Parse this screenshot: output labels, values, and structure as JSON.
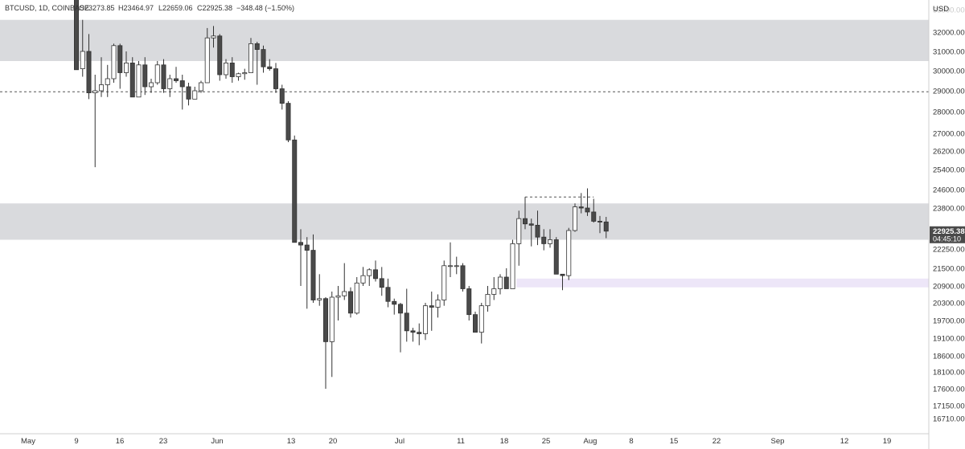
{
  "chart_data": {
    "type": "candlestick",
    "symbol_header": "BTCUSD, 1D, COINBASE",
    "ohlc_readout": {
      "open": "O23273.85",
      "high": "H23464.97",
      "low": "L22659.06",
      "close": "C22925.38",
      "change": "−348.48 (−1.50%)"
    },
    "currency_label": "USD",
    "y_ticks": [
      "32000.00",
      "31000.00",
      "30000.00",
      "29000.00",
      "28000.00",
      "27000.00",
      "26200.00",
      "25400.00",
      "24600.00",
      "23800.00",
      "22250.00",
      "21500.00",
      "20900.00",
      "20300.00",
      "19700.00",
      "19100.00",
      "18600.00",
      "18100.00",
      "17600.00",
      "17150.00",
      "16710.00"
    ],
    "x_ticks": [
      "May",
      "9",
      "16",
      "23",
      "Jun",
      "13",
      "20",
      "Jul",
      "11",
      "18",
      "25",
      "Aug",
      "8",
      "15",
      "22",
      "Sep",
      "12",
      "19"
    ],
    "last_price_label": "22925.38",
    "countdown_label": "04:45:10",
    "colors": {
      "up": "#ffffff",
      "down": "#4a4a4a",
      "outline": "#333333",
      "zone": "#d9dadd",
      "purple_zone": "#ede6f8",
      "price_tag": "#4a4a4a"
    },
    "zones": [
      {
        "type": "resistance",
        "from": 30500,
        "to": 32600
      },
      {
        "type": "supply",
        "from": 22600,
        "to": 24000
      },
      {
        "type": "demand",
        "from": 20850,
        "to": 21150
      }
    ],
    "horizontal_lines": [
      {
        "price": 28950,
        "style": "dashed"
      }
    ],
    "range_marker": {
      "price": 24280,
      "from_date": "2022-07-20",
      "to_date": "2022-07-31"
    },
    "candles": [
      {
        "date": "2022-05-09",
        "o": 34100,
        "h": 34400,
        "l": 30100,
        "c": 30050
      },
      {
        "date": "2022-05-10",
        "o": 30100,
        "h": 32600,
        "l": 29700,
        "c": 31000
      },
      {
        "date": "2022-05-11",
        "o": 31000,
        "h": 31900,
        "l": 28600,
        "c": 28900
      },
      {
        "date": "2022-05-12",
        "o": 28900,
        "h": 29800,
        "l": 25500,
        "c": 29000
      },
      {
        "date": "2022-05-13",
        "o": 29000,
        "h": 30700,
        "l": 28700,
        "c": 29300
      },
      {
        "date": "2022-05-14",
        "o": 29300,
        "h": 30300,
        "l": 28700,
        "c": 29600
      },
      {
        "date": "2022-05-15",
        "o": 29600,
        "h": 31400,
        "l": 29400,
        "c": 31300
      },
      {
        "date": "2022-05-16",
        "o": 31300,
        "h": 31400,
        "l": 29100,
        "c": 29900
      },
      {
        "date": "2022-05-17",
        "o": 29900,
        "h": 31000,
        "l": 29700,
        "c": 30400
      },
      {
        "date": "2022-05-18",
        "o": 30400,
        "h": 30700,
        "l": 28700,
        "c": 28700
      },
      {
        "date": "2022-05-19",
        "o": 28700,
        "h": 30500,
        "l": 28700,
        "c": 30300
      },
      {
        "date": "2022-05-20",
        "o": 30300,
        "h": 30700,
        "l": 28800,
        "c": 29200
      },
      {
        "date": "2022-05-21",
        "o": 29200,
        "h": 29600,
        "l": 28900,
        "c": 29400
      },
      {
        "date": "2022-05-22",
        "o": 29400,
        "h": 30500,
        "l": 29300,
        "c": 30300
      },
      {
        "date": "2022-05-23",
        "o": 30300,
        "h": 30600,
        "l": 28900,
        "c": 29100
      },
      {
        "date": "2022-05-24",
        "o": 29100,
        "h": 29800,
        "l": 28700,
        "c": 29600
      },
      {
        "date": "2022-05-25",
        "o": 29600,
        "h": 30200,
        "l": 29400,
        "c": 29500
      },
      {
        "date": "2022-05-26",
        "o": 29500,
        "h": 29800,
        "l": 28100,
        "c": 29200
      },
      {
        "date": "2022-05-27",
        "o": 29200,
        "h": 29400,
        "l": 28300,
        "c": 28600
      },
      {
        "date": "2022-05-28",
        "o": 28600,
        "h": 29200,
        "l": 28600,
        "c": 29000
      },
      {
        "date": "2022-05-29",
        "o": 29000,
        "h": 29500,
        "l": 28900,
        "c": 29400
      },
      {
        "date": "2022-05-30",
        "o": 29400,
        "h": 32200,
        "l": 29400,
        "c": 31700
      },
      {
        "date": "2022-05-31",
        "o": 31700,
        "h": 32300,
        "l": 31200,
        "c": 31800
      },
      {
        "date": "2022-06-01",
        "o": 31800,
        "h": 31900,
        "l": 29500,
        "c": 29800
      },
      {
        "date": "2022-06-02",
        "o": 29800,
        "h": 30600,
        "l": 29600,
        "c": 30400
      },
      {
        "date": "2022-06-03",
        "o": 30400,
        "h": 30700,
        "l": 29400,
        "c": 29700
      },
      {
        "date": "2022-06-04",
        "o": 29700,
        "h": 29900,
        "l": 29500,
        "c": 29850
      },
      {
        "date": "2022-06-05",
        "o": 29850,
        "h": 30100,
        "l": 29550,
        "c": 29900
      },
      {
        "date": "2022-06-06",
        "o": 29900,
        "h": 31700,
        "l": 29900,
        "c": 31400
      },
      {
        "date": "2022-06-07",
        "o": 31400,
        "h": 31500,
        "l": 29300,
        "c": 31100
      },
      {
        "date": "2022-06-08",
        "o": 31100,
        "h": 31300,
        "l": 29900,
        "c": 30200
      },
      {
        "date": "2022-06-09",
        "o": 30200,
        "h": 30600,
        "l": 30000,
        "c": 30100
      },
      {
        "date": "2022-06-10",
        "o": 30100,
        "h": 30400,
        "l": 28900,
        "c": 29100
      },
      {
        "date": "2022-06-11",
        "o": 29100,
        "h": 29300,
        "l": 28100,
        "c": 28400
      },
      {
        "date": "2022-06-12",
        "o": 28400,
        "h": 28500,
        "l": 26600,
        "c": 26700
      },
      {
        "date": "2022-06-13",
        "o": 26700,
        "h": 26900,
        "l": 22600,
        "c": 22500
      },
      {
        "date": "2022-06-14",
        "o": 22500,
        "h": 23000,
        "l": 20900,
        "c": 22400
      },
      {
        "date": "2022-06-15",
        "o": 22400,
        "h": 22700,
        "l": 20100,
        "c": 22200
      },
      {
        "date": "2022-06-16",
        "o": 22200,
        "h": 22800,
        "l": 20300,
        "c": 20400
      },
      {
        "date": "2022-06-17",
        "o": 20400,
        "h": 21300,
        "l": 20200,
        "c": 20450
      },
      {
        "date": "2022-06-18",
        "o": 20450,
        "h": 20500,
        "l": 17600,
        "c": 19000
      },
      {
        "date": "2022-06-19",
        "o": 19000,
        "h": 20700,
        "l": 17950,
        "c": 20500
      },
      {
        "date": "2022-06-20",
        "o": 20500,
        "h": 20900,
        "l": 19700,
        "c": 20550
      },
      {
        "date": "2022-06-21",
        "o": 20550,
        "h": 21700,
        "l": 20400,
        "c": 20700
      },
      {
        "date": "2022-06-22",
        "o": 20700,
        "h": 20850,
        "l": 19800,
        "c": 19950
      },
      {
        "date": "2022-06-23",
        "o": 19950,
        "h": 21200,
        "l": 19900,
        "c": 21000
      },
      {
        "date": "2022-06-24",
        "o": 21000,
        "h": 21550,
        "l": 20900,
        "c": 21250
      },
      {
        "date": "2022-06-25",
        "o": 21250,
        "h": 21500,
        "l": 20900,
        "c": 21450
      },
      {
        "date": "2022-06-26",
        "o": 21450,
        "h": 21800,
        "l": 21050,
        "c": 21150
      },
      {
        "date": "2022-06-27",
        "o": 21150,
        "h": 21550,
        "l": 20550,
        "c": 20850
      },
      {
        "date": "2022-06-28",
        "o": 20850,
        "h": 21150,
        "l": 20150,
        "c": 20350
      },
      {
        "date": "2022-06-29",
        "o": 20350,
        "h": 20450,
        "l": 19900,
        "c": 20250
      },
      {
        "date": "2022-06-30",
        "o": 20250,
        "h": 20300,
        "l": 18700,
        "c": 19950
      },
      {
        "date": "2022-07-01",
        "o": 19950,
        "h": 20800,
        "l": 19000,
        "c": 19350
      },
      {
        "date": "2022-07-02",
        "o": 19350,
        "h": 19450,
        "l": 19000,
        "c": 19300
      },
      {
        "date": "2022-07-03",
        "o": 19300,
        "h": 19600,
        "l": 18900,
        "c": 19250
      },
      {
        "date": "2022-07-04",
        "o": 19250,
        "h": 20300,
        "l": 19050,
        "c": 20200
      },
      {
        "date": "2022-07-05",
        "o": 20200,
        "h": 20700,
        "l": 19350,
        "c": 20150
      },
      {
        "date": "2022-07-06",
        "o": 20150,
        "h": 20600,
        "l": 19800,
        "c": 20400
      },
      {
        "date": "2022-07-07",
        "o": 20400,
        "h": 21800,
        "l": 20200,
        "c": 21600
      },
      {
        "date": "2022-07-08",
        "o": 21600,
        "h": 22500,
        "l": 21200,
        "c": 21600
      },
      {
        "date": "2022-07-09",
        "o": 21600,
        "h": 21950,
        "l": 21300,
        "c": 21600
      },
      {
        "date": "2022-07-10",
        "o": 21600,
        "h": 21700,
        "l": 20700,
        "c": 20800
      },
      {
        "date": "2022-07-11",
        "o": 20800,
        "h": 20900,
        "l": 19700,
        "c": 19900
      },
      {
        "date": "2022-07-12",
        "o": 19900,
        "h": 20000,
        "l": 19300,
        "c": 19300
      },
      {
        "date": "2022-07-13",
        "o": 19300,
        "h": 20300,
        "l": 18950,
        "c": 20200
      },
      {
        "date": "2022-07-14",
        "o": 20200,
        "h": 20900,
        "l": 20000,
        "c": 20600
      },
      {
        "date": "2022-07-15",
        "o": 20600,
        "h": 21200,
        "l": 20400,
        "c": 20800
      },
      {
        "date": "2022-07-16",
        "o": 20800,
        "h": 21300,
        "l": 20600,
        "c": 21200
      },
      {
        "date": "2022-07-17",
        "o": 21200,
        "h": 21500,
        "l": 20800,
        "c": 20800
      },
      {
        "date": "2022-07-18",
        "o": 20800,
        "h": 22600,
        "l": 20800,
        "c": 22450
      },
      {
        "date": "2022-07-19",
        "o": 22450,
        "h": 23700,
        "l": 21600,
        "c": 23400
      },
      {
        "date": "2022-07-20",
        "o": 23400,
        "h": 24280,
        "l": 23000,
        "c": 23200
      },
      {
        "date": "2022-07-21",
        "o": 23200,
        "h": 23400,
        "l": 22350,
        "c": 23150
      },
      {
        "date": "2022-07-22",
        "o": 23150,
        "h": 23700,
        "l": 22400,
        "c": 22700
      },
      {
        "date": "2022-07-23",
        "o": 22700,
        "h": 23000,
        "l": 22200,
        "c": 22450
      },
      {
        "date": "2022-07-24",
        "o": 22450,
        "h": 23000,
        "l": 22300,
        "c": 22600
      },
      {
        "date": "2022-07-25",
        "o": 22600,
        "h": 22700,
        "l": 21300,
        "c": 21300
      },
      {
        "date": "2022-07-26",
        "o": 21300,
        "h": 21300,
        "l": 20750,
        "c": 21250
      },
      {
        "date": "2022-07-27",
        "o": 21250,
        "h": 23050,
        "l": 21100,
        "c": 22950
      },
      {
        "date": "2022-07-28",
        "o": 22950,
        "h": 24000,
        "l": 22900,
        "c": 23850
      },
      {
        "date": "2022-07-29",
        "o": 23850,
        "h": 24450,
        "l": 23600,
        "c": 23800
      },
      {
        "date": "2022-07-30",
        "o": 23800,
        "h": 24650,
        "l": 23500,
        "c": 23650
      },
      {
        "date": "2022-07-31",
        "o": 23650,
        "h": 24200,
        "l": 23250,
        "c": 23300
      },
      {
        "date": "2022-08-01",
        "o": 23300,
        "h": 23500,
        "l": 22850,
        "c": 23273.85
      },
      {
        "date": "2022-08-02",
        "o": 23273.85,
        "h": 23464.97,
        "l": 22659.06,
        "c": 22925.38
      }
    ]
  }
}
